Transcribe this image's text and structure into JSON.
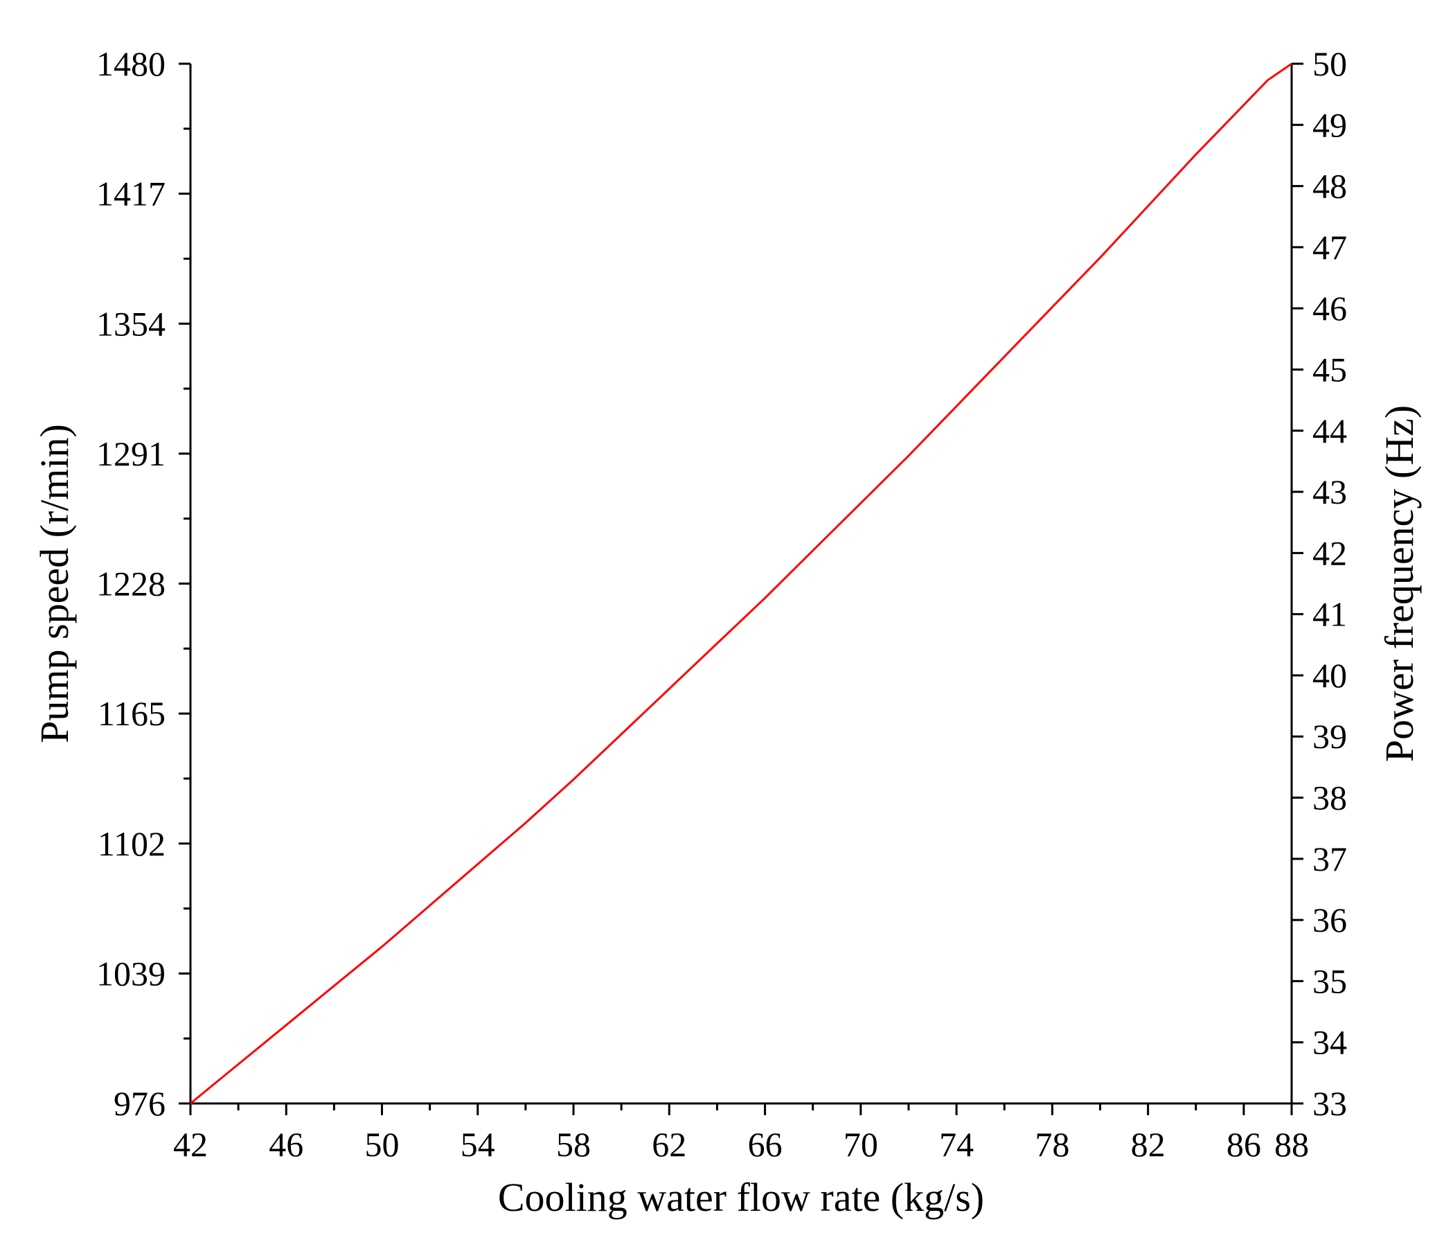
{
  "chart_data": {
    "type": "line",
    "xlabel": "Cooling water flow rate (kg/s)",
    "ylabel": "Pump speed (r/min)",
    "y2label": "Power frequency (Hz)",
    "xlim": [
      42,
      88
    ],
    "ylim": [
      976,
      1480
    ],
    "y2lim": [
      33,
      50
    ],
    "x_ticks": [
      42,
      46,
      50,
      54,
      58,
      62,
      66,
      70,
      74,
      78,
      82,
      86,
      88
    ],
    "y_ticks": [
      976,
      1039,
      1102,
      1165,
      1228,
      1291,
      1354,
      1417,
      1480
    ],
    "y2_ticks": [
      33,
      34,
      35,
      36,
      37,
      38,
      39,
      40,
      41,
      42,
      43,
      44,
      45,
      46,
      47,
      48,
      49,
      50
    ],
    "grid": false,
    "colors": {
      "line": "#ff0000",
      "axes": "#000000"
    },
    "series": [
      {
        "x": [
          42,
          44,
          46,
          48,
          50,
          52,
          54,
          56,
          58,
          60,
          62,
          64,
          66,
          68,
          70,
          72,
          74,
          76,
          78,
          80,
          82,
          84,
          86,
          87,
          88
        ],
        "y": [
          976,
          995,
          1014,
          1033,
          1052,
          1072,
          1092,
          1112,
          1133,
          1155,
          1177,
          1199,
          1221,
          1244,
          1267,
          1290,
          1314,
          1338,
          1362,
          1386,
          1411,
          1436,
          1460,
          1472,
          1480
        ]
      }
    ]
  }
}
